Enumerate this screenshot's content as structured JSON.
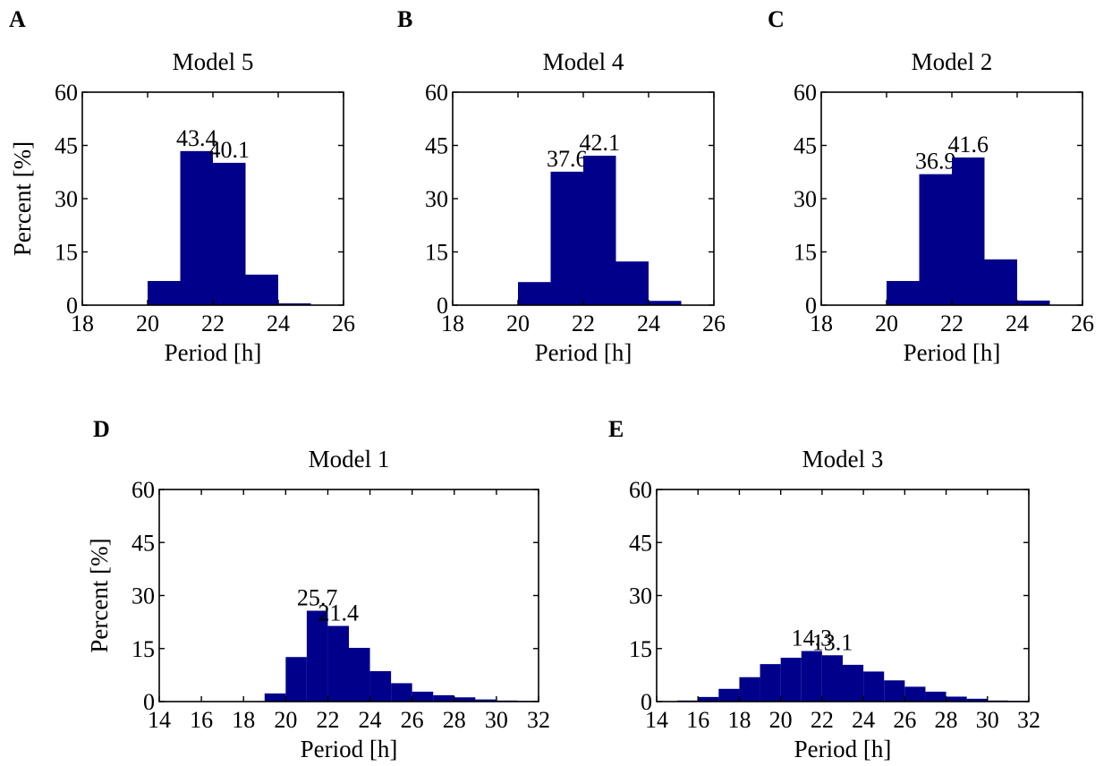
{
  "colors": {
    "bar": "#00008b",
    "axis": "#000000"
  },
  "chart_data": [
    {
      "panel": "A",
      "type": "bar",
      "title": "Model 5",
      "xlabel": "Period [h]",
      "ylabel": "Percent [%]",
      "xlim": [
        18,
        26
      ],
      "ylim": [
        0,
        60
      ],
      "xticks": [
        18,
        20,
        22,
        24,
        26
      ],
      "yticks": [
        0,
        15,
        30,
        45,
        60
      ],
      "bin_width": 1,
      "bins": [
        {
          "x0": 20,
          "value": 6.8
        },
        {
          "x0": 21,
          "value": 43.4,
          "label": "43.4"
        },
        {
          "x0": 22,
          "value": 40.1,
          "label": "40.1"
        },
        {
          "x0": 23,
          "value": 8.6
        },
        {
          "x0": 24,
          "value": 0.5
        }
      ]
    },
    {
      "panel": "B",
      "type": "bar",
      "title": "Model 4",
      "xlabel": "Period [h]",
      "ylabel": "",
      "xlim": [
        18,
        26
      ],
      "ylim": [
        0,
        60
      ],
      "xticks": [
        18,
        20,
        22,
        24,
        26
      ],
      "yticks": [
        0,
        15,
        30,
        45,
        60
      ],
      "bin_width": 1,
      "bins": [
        {
          "x0": 20,
          "value": 6.5
        },
        {
          "x0": 21,
          "value": 37.6,
          "label": "37.6"
        },
        {
          "x0": 22,
          "value": 42.1,
          "label": "42.1"
        },
        {
          "x0": 23,
          "value": 12.3
        },
        {
          "x0": 24,
          "value": 1.2
        }
      ]
    },
    {
      "panel": "C",
      "type": "bar",
      "title": "Model 2",
      "xlabel": "Period [h]",
      "ylabel": "",
      "xlim": [
        18,
        26
      ],
      "ylim": [
        0,
        60
      ],
      "xticks": [
        18,
        20,
        22,
        24,
        26
      ],
      "yticks": [
        0,
        15,
        30,
        45,
        60
      ],
      "bin_width": 1,
      "bins": [
        {
          "x0": 20,
          "value": 6.8
        },
        {
          "x0": 21,
          "value": 36.9,
          "label": "36.9"
        },
        {
          "x0": 22,
          "value": 41.6,
          "label": "41.6"
        },
        {
          "x0": 23,
          "value": 12.9
        },
        {
          "x0": 24,
          "value": 1.3
        }
      ]
    },
    {
      "panel": "D",
      "type": "bar",
      "title": "Model 1",
      "xlabel": "Period [h]",
      "ylabel": "Percent [%]",
      "xlim": [
        14,
        32
      ],
      "ylim": [
        0,
        60
      ],
      "xticks": [
        14,
        16,
        18,
        20,
        22,
        24,
        26,
        28,
        30,
        32
      ],
      "yticks": [
        0,
        15,
        30,
        45,
        60
      ],
      "bin_width": 1,
      "bins": [
        {
          "x0": 19,
          "value": 2.3
        },
        {
          "x0": 20,
          "value": 12.6
        },
        {
          "x0": 21,
          "value": 25.7,
          "label": "25.7"
        },
        {
          "x0": 22,
          "value": 21.4,
          "label": "21.4"
        },
        {
          "x0": 23,
          "value": 15.2
        },
        {
          "x0": 24,
          "value": 8.6
        },
        {
          "x0": 25,
          "value": 5.2
        },
        {
          "x0": 26,
          "value": 2.8
        },
        {
          "x0": 27,
          "value": 1.8
        },
        {
          "x0": 28,
          "value": 1.2
        },
        {
          "x0": 29,
          "value": 0.6
        },
        {
          "x0": 30,
          "value": 0.3
        },
        {
          "x0": 31,
          "value": 0.2
        }
      ]
    },
    {
      "panel": "E",
      "type": "bar",
      "title": "Model 3",
      "xlabel": "Period [h]",
      "ylabel": "",
      "xlim": [
        14,
        32
      ],
      "ylim": [
        0,
        60
      ],
      "xticks": [
        14,
        16,
        18,
        20,
        22,
        24,
        26,
        28,
        30,
        32
      ],
      "yticks": [
        0,
        15,
        30,
        45,
        60
      ],
      "bin_width": 1,
      "bins": [
        {
          "x0": 15,
          "value": 0.3
        },
        {
          "x0": 16,
          "value": 1.3
        },
        {
          "x0": 17,
          "value": 3.6
        },
        {
          "x0": 18,
          "value": 6.9
        },
        {
          "x0": 19,
          "value": 10.6
        },
        {
          "x0": 20,
          "value": 12.4
        },
        {
          "x0": 21,
          "value": 14.3,
          "label": "14.3"
        },
        {
          "x0": 22,
          "value": 13.1,
          "label": "13.1"
        },
        {
          "x0": 23,
          "value": 10.4
        },
        {
          "x0": 24,
          "value": 8.5
        },
        {
          "x0": 25,
          "value": 6.0
        },
        {
          "x0": 26,
          "value": 4.2
        },
        {
          "x0": 27,
          "value": 2.8
        },
        {
          "x0": 28,
          "value": 1.4
        },
        {
          "x0": 29,
          "value": 0.8
        },
        {
          "x0": 30,
          "value": 0.3
        },
        {
          "x0": 31,
          "value": 0.2
        }
      ]
    }
  ]
}
